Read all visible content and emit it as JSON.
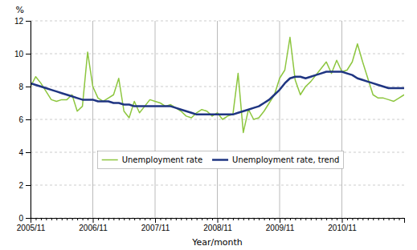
{
  "chart_data": {
    "type": "line",
    "x_label": "Year/month",
    "y_label": "%",
    "categories": [
      "2005/11",
      null,
      null,
      null,
      null,
      null,
      null,
      null,
      null,
      null,
      null,
      null,
      "2006/11",
      null,
      null,
      null,
      null,
      null,
      null,
      null,
      null,
      null,
      null,
      null,
      "2007/11",
      null,
      null,
      null,
      null,
      null,
      null,
      null,
      null,
      null,
      null,
      null,
      "2008/11",
      null,
      null,
      null,
      null,
      null,
      null,
      null,
      null,
      null,
      null,
      null,
      "2009/11",
      null,
      null,
      null,
      null,
      null,
      null,
      null,
      null,
      null,
      null,
      null,
      "2010/11",
      null,
      null,
      null,
      null,
      null,
      null,
      null,
      null,
      null,
      null,
      null,
      null
    ],
    "series": [
      {
        "name": "Unemployment rate",
        "color": "#8dc63f",
        "values": [
          8.0,
          8.6,
          8.2,
          7.7,
          7.2,
          7.1,
          7.2,
          7.2,
          7.5,
          6.5,
          6.8,
          10.1,
          8.0,
          7.3,
          7.1,
          7.3,
          7.5,
          8.5,
          6.5,
          6.1,
          7.1,
          6.4,
          6.8,
          7.2,
          7.1,
          7.0,
          6.8,
          6.9,
          6.7,
          6.5,
          6.2,
          6.1,
          6.4,
          6.6,
          6.5,
          6.2,
          6.4,
          6.0,
          6.2,
          6.3,
          8.8,
          5.2,
          6.6,
          6.0,
          6.1,
          6.5,
          7.0,
          7.5,
          8.5,
          9.0,
          11.0,
          8.4,
          7.5,
          8.0,
          8.3,
          8.7,
          9.1,
          9.5,
          8.8,
          9.6,
          8.9,
          9.0,
          9.5,
          10.6,
          9.5,
          8.5,
          7.5,
          7.3,
          7.3,
          7.2,
          7.1,
          7.3,
          7.5
        ]
      },
      {
        "name": "Unemployment rate, trend",
        "color": "#1f3582",
        "values": [
          8.2,
          8.1,
          8.0,
          7.9,
          7.8,
          7.7,
          7.6,
          7.5,
          7.4,
          7.3,
          7.2,
          7.2,
          7.2,
          7.1,
          7.1,
          7.1,
          7.0,
          7.0,
          6.9,
          6.9,
          6.8,
          6.8,
          6.8,
          6.8,
          6.8,
          6.8,
          6.8,
          6.8,
          6.7,
          6.6,
          6.5,
          6.4,
          6.3,
          6.3,
          6.3,
          6.3,
          6.3,
          6.3,
          6.3,
          6.3,
          6.4,
          6.5,
          6.6,
          6.7,
          6.8,
          7.0,
          7.2,
          7.5,
          7.8,
          8.2,
          8.5,
          8.6,
          8.6,
          8.5,
          8.6,
          8.7,
          8.8,
          8.9,
          8.9,
          8.9,
          8.9,
          8.8,
          8.7,
          8.5,
          8.4,
          8.3,
          8.2,
          8.1,
          8.0,
          7.9,
          7.9,
          7.9,
          7.9
        ]
      }
    ],
    "ylim": [
      0,
      12
    ],
    "yticks": [
      0,
      2,
      4,
      6,
      8,
      10,
      12
    ],
    "grid": true,
    "legend": "lower left"
  }
}
